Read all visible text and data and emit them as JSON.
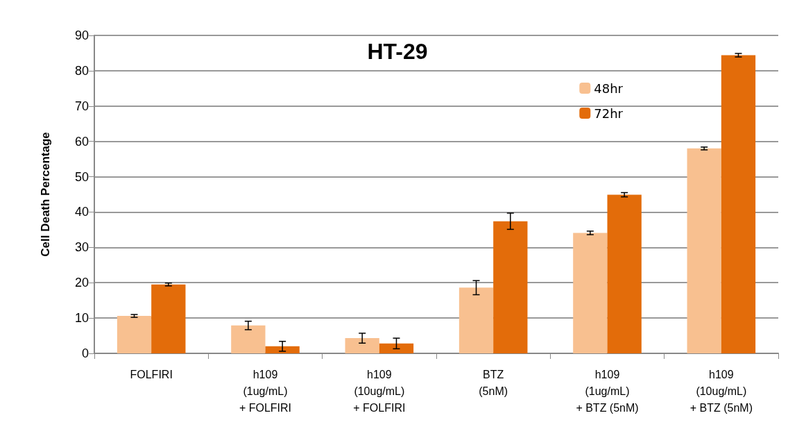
{
  "chart_data": {
    "type": "bar",
    "title": "HT-29",
    "ylabel": "Cell Death Percentage",
    "categories": [
      "FOLFIRI",
      "h109\n(1ug/mL)\n+ FOLFIRI",
      "h109\n(10ug/mL)\n+ FOLFIRI",
      "BTZ\n(5nM)",
      "h109\n(1ug/mL)\n+ BTZ (5nM)",
      "h109\n(10ug/mL)\n+ BTZ (5nM)"
    ],
    "series": [
      {
        "name": "48hr",
        "color": "#f8c090",
        "values": [
          10.6,
          7.9,
          4.3,
          18.6,
          34.1,
          58
        ],
        "errors": [
          0.4,
          1.2,
          1.4,
          2,
          0.5,
          0.4
        ]
      },
      {
        "name": "72hr",
        "color": "#e36c0a",
        "values": [
          19.5,
          2,
          2.8,
          37.4,
          44.9,
          84.4
        ],
        "errors": [
          0.4,
          1.4,
          1.5,
          2.3,
          0.6,
          0.5
        ]
      }
    ],
    "ylim": [
      0,
      90
    ],
    "yticks": [
      0,
      10,
      20,
      30,
      40,
      50,
      60,
      70,
      80,
      90
    ],
    "grid": "y",
    "legend": "top right"
  }
}
